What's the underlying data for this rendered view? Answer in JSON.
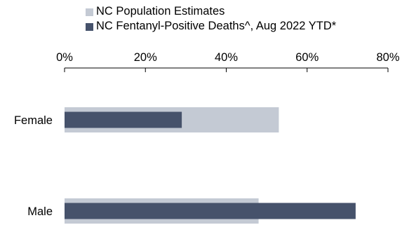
{
  "legend": {
    "items": [
      {
        "label": "NC Population Estimates",
        "color": "#c4cad4"
      },
      {
        "label": "NC Fentanyl-Positive Deaths^, Aug 2022 YTD*",
        "color": "#46526b"
      }
    ]
  },
  "chart_data": {
    "type": "bar",
    "orientation": "horizontal",
    "categories": [
      "Female",
      "Male"
    ],
    "series": [
      {
        "name": "NC Population Estimates",
        "values": [
          53,
          48
        ],
        "color": "#c4cad4"
      },
      {
        "name": "NC Fentanyl-Positive Deaths^, Aug 2022 YTD*",
        "values": [
          29,
          72
        ],
        "color": "#46526b"
      }
    ],
    "xlim": [
      0,
      80
    ],
    "xticks": [
      "0%",
      "20%",
      "40%",
      "60%",
      "80%"
    ],
    "xtick_values": [
      0,
      20,
      40,
      60,
      80
    ],
    "xaxis_position": "top",
    "legend_position": "top",
    "grid": false
  }
}
